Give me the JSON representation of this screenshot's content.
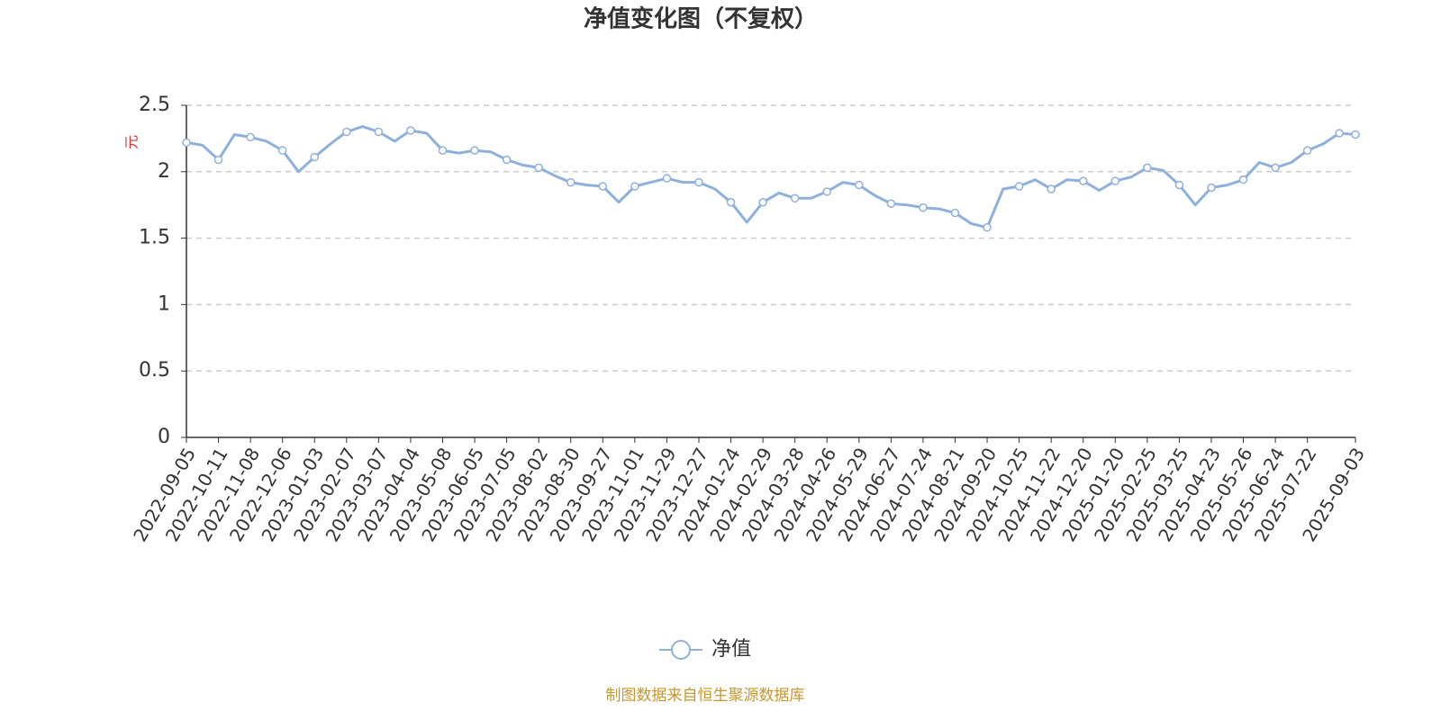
{
  "chart_data": {
    "type": "line",
    "title": "净值变化图（不复权）",
    "y_label": "元",
    "source": "制图数据来自恒生聚源数据库",
    "categories": [
      "2022-09-05",
      null,
      "2022-10-11",
      null,
      "2022-11-08",
      null,
      "2022-12-06",
      null,
      "2023-01-03",
      null,
      "2023-02-07",
      null,
      "2023-03-07",
      null,
      "2023-04-04",
      null,
      "2023-05-08",
      null,
      "2023-06-05",
      null,
      "2023-07-05",
      null,
      "2023-08-02",
      null,
      "2023-08-30",
      null,
      "2023-09-27",
      null,
      "2023-11-01",
      null,
      "2023-11-29",
      null,
      "2023-12-27",
      null,
      "2024-01-24",
      null,
      "2024-02-29",
      null,
      "2024-03-28",
      null,
      "2024-04-26",
      null,
      "2024-05-29",
      null,
      "2024-06-27",
      null,
      "2024-07-24",
      null,
      "2024-08-21",
      null,
      "2024-09-20",
      null,
      "2024-10-25",
      null,
      "2024-11-22",
      null,
      "2024-12-20",
      null,
      "2025-01-20",
      null,
      "2025-02-25",
      null,
      "2025-03-25",
      null,
      "2025-04-23",
      null,
      "2025-05-26",
      null,
      "2025-06-24",
      null,
      "2025-07-22",
      null,
      null,
      "2025-09-03"
    ],
    "series": [
      {
        "name": "净值",
        "color": "#8eb0dc",
        "values": [
          2.22,
          2.2,
          2.09,
          2.28,
          2.26,
          2.23,
          2.16,
          2.0,
          2.11,
          2.21,
          2.3,
          2.34,
          2.3,
          2.23,
          2.31,
          2.29,
          2.16,
          2.14,
          2.16,
          2.15,
          2.09,
          2.05,
          2.03,
          1.97,
          1.92,
          1.9,
          1.89,
          1.77,
          1.89,
          1.92,
          1.95,
          1.92,
          1.92,
          1.87,
          1.77,
          1.62,
          1.77,
          1.84,
          1.8,
          1.8,
          1.85,
          1.92,
          1.9,
          1.82,
          1.76,
          1.75,
          1.73,
          1.72,
          1.69,
          1.61,
          1.58,
          1.87,
          1.89,
          1.94,
          1.87,
          1.94,
          1.93,
          1.86,
          1.93,
          1.96,
          2.03,
          2.01,
          1.9,
          1.75,
          1.88,
          1.9,
          1.94,
          2.07,
          2.03,
          2.07,
          2.16,
          2.21,
          2.29,
          2.28
        ]
      }
    ],
    "ylim": [
      0,
      2.5
    ],
    "yticks": [
      0,
      0.5,
      1,
      1.5,
      2,
      2.5
    ],
    "grid": true,
    "legend": "bottom"
  }
}
